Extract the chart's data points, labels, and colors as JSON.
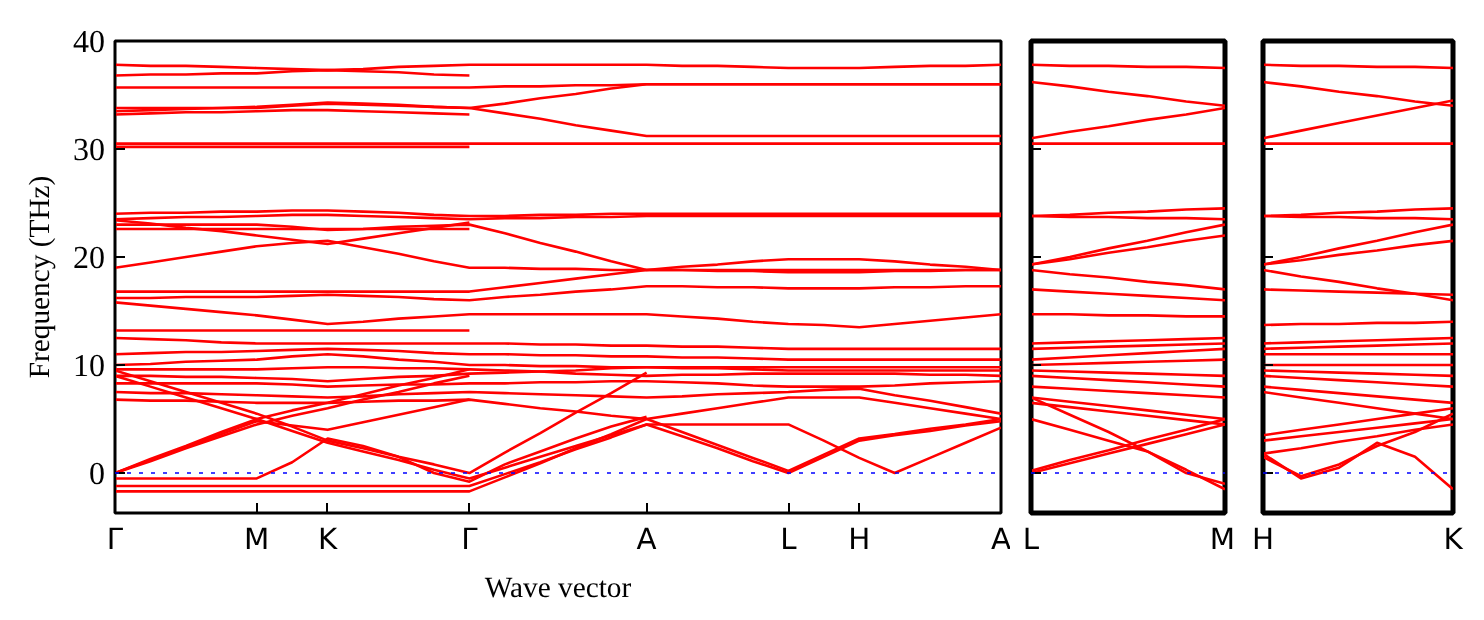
{
  "chart_data": [
    {
      "type": "line",
      "xlabel": "Wave vector",
      "ylabel": "Frequency (THz)",
      "ylim": [
        -3.7,
        40
      ],
      "yticks": [
        0,
        10,
        20,
        30,
        40
      ],
      "grid": false,
      "categories": [
        "Γ",
        null,
        null,
        null,
        "M",
        null,
        "K",
        null,
        null,
        null,
        "Γ",
        null,
        null,
        null,
        null,
        "A",
        null,
        null,
        null,
        "L",
        null,
        "H",
        null,
        null,
        null,
        "A"
      ],
      "ref_lines": [
        {
          "axis": "y",
          "value": 0,
          "color": "#0000ff",
          "line_style": "dotted"
        }
      ],
      "series": [
        {
          "color": "#ff0000",
          "values": [
            37.8,
            37.7,
            37.7,
            37.6,
            37.5,
            37.4,
            37.3,
            37.4,
            37.6,
            37.7,
            37.8,
            37.8,
            37.8,
            37.8,
            37.8,
            37.8,
            37.7,
            37.7,
            37.6,
            37.5,
            37.5,
            37.5,
            37.6,
            37.7,
            37.7,
            37.8
          ]
        },
        {
          "color": "#ff0000",
          "values": [
            36.8,
            36.9,
            36.9,
            37.0,
            37.0,
            37.2,
            37.3,
            37.2,
            37.1,
            36.9,
            36.8,
            null,
            null,
            null,
            null,
            null,
            null,
            null,
            null,
            null,
            null,
            null,
            null,
            null,
            null,
            null
          ]
        },
        {
          "color": "#ff0000",
          "values": [
            35.7,
            35.7,
            35.7,
            35.7,
            35.7,
            35.7,
            35.7,
            35.7,
            35.7,
            35.7,
            35.7,
            35.8,
            35.8,
            35.9,
            35.9,
            36.0,
            36.0,
            36.0,
            36.0,
            36.0,
            36.0,
            36.0,
            36.0,
            36.0,
            36.0,
            36.0
          ]
        },
        {
          "color": "#ff0000",
          "values": [
            33.8,
            33.8,
            33.8,
            33.8,
            33.8,
            34.0,
            34.2,
            34.1,
            34.0,
            33.9,
            33.8,
            33.3,
            32.8,
            32.2,
            31.7,
            31.2,
            31.2,
            31.2,
            31.2,
            31.2,
            31.2,
            31.2,
            31.2,
            31.2,
            31.2,
            31.2
          ]
        },
        {
          "color": "#ff0000",
          "values": [
            33.5,
            33.6,
            33.7,
            33.8,
            33.9,
            34.1,
            34.3,
            34.2,
            34.1,
            33.9,
            33.8,
            34.2,
            34.7,
            35.1,
            35.6,
            36.0,
            36.0,
            36.0,
            36.0,
            36.0,
            36.0,
            36.0,
            36.0,
            36.0,
            36.0,
            36.0
          ]
        },
        {
          "color": "#ff0000",
          "values": [
            33.2,
            33.3,
            33.4,
            33.4,
            33.5,
            33.6,
            33.6,
            33.5,
            33.4,
            33.3,
            33.2,
            null,
            null,
            null,
            null,
            null,
            null,
            null,
            null,
            null,
            null,
            null,
            null,
            null,
            null,
            null
          ]
        },
        {
          "color": "#ff0000",
          "values": [
            30.5,
            30.5,
            30.5,
            30.5,
            30.5,
            30.5,
            30.5,
            30.5,
            30.5,
            30.5,
            30.5,
            30.5,
            30.5,
            30.5,
            30.5,
            30.5,
            30.5,
            30.5,
            30.5,
            30.5,
            30.5,
            30.5,
            30.5,
            30.5,
            30.5,
            30.5
          ]
        },
        {
          "color": "#ff0000",
          "values": [
            30.2,
            30.2,
            30.2,
            30.2,
            30.2,
            30.2,
            30.2,
            30.2,
            30.2,
            30.2,
            30.2,
            null,
            null,
            null,
            null,
            null,
            null,
            null,
            null,
            null,
            null,
            null,
            null,
            null,
            null,
            null
          ]
        },
        {
          "color": "#ff0000",
          "values": [
            24.0,
            24.1,
            24.1,
            24.2,
            24.2,
            24.3,
            24.3,
            24.2,
            24.1,
            23.9,
            23.8,
            23.8,
            23.9,
            23.9,
            24.0,
            24.0,
            24.0,
            24.0,
            24.0,
            24.0,
            24.0,
            24.0,
            24.0,
            24.0,
            24.0,
            24.0
          ]
        },
        {
          "color": "#ff0000",
          "values": [
            23.5,
            23.6,
            23.7,
            23.7,
            23.8,
            23.9,
            23.9,
            23.8,
            23.7,
            23.6,
            23.5,
            23.6,
            23.6,
            23.7,
            23.7,
            23.8,
            23.8,
            23.8,
            23.8,
            23.8,
            23.8,
            23.8,
            23.8,
            23.8,
            23.8,
            23.8
          ]
        },
        {
          "color": "#ff0000",
          "values": [
            23.0,
            23.0,
            23.0,
            23.0,
            23.0,
            22.8,
            22.5,
            22.6,
            22.8,
            22.9,
            23.0,
            22.2,
            21.3,
            20.5,
            19.6,
            18.8,
            18.8,
            18.8,
            18.8,
            18.8,
            18.8,
            18.8,
            18.8,
            18.8,
            18.8,
            18.8
          ]
        },
        {
          "color": "#ff0000",
          "values": [
            22.6,
            22.6,
            22.6,
            22.6,
            22.6,
            22.6,
            22.6,
            22.6,
            22.6,
            22.6,
            22.6,
            null,
            null,
            null,
            null,
            null,
            null,
            null,
            null,
            null,
            null,
            null,
            null,
            null,
            null,
            null
          ]
        },
        {
          "color": "#ff0000",
          "values": [
            19.0,
            19.5,
            20.0,
            20.5,
            21.0,
            21.3,
            21.5,
            20.9,
            20.3,
            19.6,
            19.0,
            19.0,
            18.9,
            18.9,
            18.8,
            18.8,
            18.8,
            18.7,
            18.7,
            18.6,
            18.6,
            18.6,
            18.7,
            18.7,
            18.8,
            18.8
          ]
        },
        {
          "color": "#ff0000",
          "values": [
            23.4,
            23.1,
            22.7,
            22.4,
            22.0,
            21.6,
            21.2,
            21.7,
            22.2,
            22.7,
            23.2,
            null,
            null,
            null,
            null,
            null,
            null,
            null,
            null,
            null,
            null,
            null,
            null,
            null,
            null,
            null
          ]
        },
        {
          "color": "#ff0000",
          "values": [
            16.8,
            16.8,
            16.8,
            16.8,
            16.8,
            16.8,
            16.8,
            16.8,
            16.8,
            16.8,
            16.8,
            17.2,
            17.6,
            18.0,
            18.4,
            18.8,
            19.1,
            19.3,
            19.6,
            19.8,
            19.8,
            19.8,
            19.6,
            19.3,
            19.1,
            18.8
          ]
        },
        {
          "color": "#ff0000",
          "values": [
            16.2,
            16.2,
            16.3,
            16.3,
            16.3,
            16.4,
            16.5,
            16.4,
            16.3,
            16.1,
            16.0,
            16.3,
            16.5,
            16.8,
            17.0,
            17.3,
            17.3,
            17.2,
            17.2,
            17.1,
            17.1,
            17.1,
            17.2,
            17.2,
            17.3,
            17.3
          ]
        },
        {
          "color": "#ff0000",
          "values": [
            15.8,
            15.5,
            15.2,
            14.9,
            14.6,
            14.2,
            13.8,
            14.0,
            14.3,
            14.5,
            14.7,
            14.7,
            14.7,
            14.7,
            14.7,
            14.7,
            14.5,
            14.3,
            14.0,
            13.8,
            13.7,
            13.5,
            13.8,
            14.1,
            14.4,
            14.7
          ]
        },
        {
          "color": "#ff0000",
          "values": [
            13.2,
            13.2,
            13.2,
            13.2,
            13.2,
            13.2,
            13.2,
            13.2,
            13.2,
            13.2,
            13.2,
            null,
            null,
            null,
            null,
            null,
            null,
            null,
            null,
            null,
            null,
            null,
            null,
            null,
            null,
            null
          ]
        },
        {
          "color": "#ff0000",
          "values": [
            12.5,
            12.4,
            12.3,
            12.1,
            12.0,
            12.0,
            12.0,
            12.0,
            12.0,
            12.0,
            12.0,
            12.0,
            11.9,
            11.9,
            11.8,
            11.8,
            11.7,
            11.7,
            11.6,
            11.5,
            11.5,
            11.5,
            11.5,
            11.5,
            11.5,
            11.5
          ]
        },
        {
          "color": "#ff0000",
          "values": [
            11.0,
            11.1,
            11.2,
            11.2,
            11.3,
            11.4,
            11.5,
            11.4,
            11.3,
            11.1,
            11.0,
            11.0,
            10.9,
            10.9,
            10.8,
            10.8,
            10.7,
            10.7,
            10.6,
            10.5,
            10.5,
            10.5,
            10.5,
            10.5,
            10.5,
            10.5
          ]
        },
        {
          "color": "#ff0000",
          "values": [
            10.0,
            10.1,
            10.3,
            10.4,
            10.5,
            10.8,
            11.0,
            10.8,
            10.5,
            10.3,
            10.0,
            10.0,
            9.9,
            9.9,
            9.8,
            9.8,
            9.7,
            9.7,
            9.6,
            9.5,
            9.5,
            9.5,
            9.5,
            9.5,
            9.5,
            9.5
          ]
        },
        {
          "color": "#ff0000",
          "values": [
            9.6,
            9.6,
            9.6,
            9.6,
            9.6,
            9.7,
            9.8,
            9.8,
            9.7,
            9.7,
            9.6,
            9.5,
            9.4,
            9.2,
            9.1,
            9.0,
            9.1,
            9.1,
            9.2,
            9.2,
            9.2,
            9.2,
            9.2,
            9.1,
            9.1,
            9.0
          ]
        },
        {
          "color": "#ff0000",
          "values": [
            9.0,
            9.0,
            8.9,
            8.9,
            8.8,
            8.7,
            8.5,
            8.7,
            8.9,
            9.0,
            9.2,
            9.3,
            9.4,
            9.5,
            9.7,
            9.8,
            9.8,
            9.8,
            9.8,
            9.8,
            9.8,
            9.8,
            9.8,
            9.8,
            9.8,
            9.8
          ]
        },
        {
          "color": "#ff0000",
          "values": [
            8.3,
            8.3,
            8.3,
            8.3,
            8.3,
            8.2,
            8.0,
            8.1,
            8.2,
            8.2,
            8.3,
            8.3,
            8.4,
            8.4,
            8.5,
            8.5,
            8.4,
            8.3,
            8.1,
            8.0,
            8.0,
            8.0,
            8.1,
            8.3,
            8.4,
            8.5
          ]
        },
        {
          "color": "#ff0000",
          "values": [
            7.5,
            7.4,
            7.4,
            7.3,
            7.2,
            7.1,
            7.0,
            7.1,
            7.3,
            7.4,
            7.5,
            7.4,
            7.3,
            7.2,
            7.1,
            7.0,
            7.1,
            7.3,
            7.4,
            7.5,
            7.7,
            7.8,
            7.2,
            6.7,
            6.1,
            5.5
          ]
        },
        {
          "color": "#ff0000",
          "values": [
            6.8,
            6.7,
            6.7,
            6.6,
            6.5,
            6.5,
            6.5,
            6.6,
            6.7,
            6.7,
            6.8,
            6.4,
            6.0,
            5.7,
            5.3,
            5.0,
            5.5,
            6.0,
            6.5,
            7.0,
            7.0,
            7.0,
            6.5,
            6.0,
            5.5,
            5.0
          ]
        },
        {
          "color": "#ff0000",
          "values": [
            9.5,
            8.5,
            7.5,
            6.5,
            5.5,
            4.3,
            3.0,
            2.3,
            1.5,
            0.8,
            0.0,
            1.9,
            3.7,
            5.6,
            7.4,
            9.3,
            null,
            null,
            null,
            null,
            null,
            null,
            null,
            null,
            null,
            null
          ]
        },
        {
          "color": "#ff0000",
          "values": [
            9.0,
            8.0,
            7.0,
            6.0,
            5.0,
            3.9,
            2.8,
            2.0,
            1.2,
            0.3,
            -0.5,
            0.5,
            1.5,
            2.5,
            3.5,
            4.5,
            3.4,
            2.3,
            1.1,
            0.0,
            1.5,
            3.0,
            3.5,
            3.9,
            4.4,
            4.8
          ]
        },
        {
          "color": "#ff0000",
          "values": [
            0.0,
            1.1,
            2.3,
            3.4,
            4.5,
            5.3,
            6.0,
            6.8,
            7.5,
            8.3,
            9.0,
            null,
            null,
            null,
            null,
            null,
            null,
            null,
            null,
            null,
            null,
            null,
            null,
            null,
            null,
            null
          ]
        },
        {
          "color": "#ff0000",
          "values": [
            0.0,
            1.3,
            2.5,
            3.8,
            5.0,
            5.8,
            6.5,
            7.3,
            8.1,
            8.8,
            9.6,
            null,
            null,
            null,
            null,
            null,
            null,
            null,
            null,
            null,
            null,
            null,
            null,
            null,
            null,
            null
          ]
        },
        {
          "color": "#ff0000",
          "values": [
            0.0,
            1.2,
            2.4,
            3.6,
            4.8,
            4.4,
            4.0,
            4.7,
            5.4,
            6.1,
            6.8,
            null,
            null,
            null,
            null,
            null,
            null,
            null,
            null,
            null,
            null,
            null,
            null,
            null,
            null,
            null
          ]
        },
        {
          "color": "#ff0000",
          "values": [
            -1.7,
            -1.7,
            -1.7,
            -1.7,
            -1.7,
            -1.7,
            -1.7,
            -1.7,
            -1.7,
            -1.7,
            -1.7,
            -0.4,
            0.9,
            2.3,
            3.6,
            5.0,
            3.8,
            2.6,
            1.4,
            0.2,
            1.7,
            3.2,
            3.6,
            4.1,
            4.5,
            5.0
          ]
        },
        {
          "color": "#ff0000",
          "values": [
            -1.2,
            -1.2,
            -1.2,
            -1.2,
            -1.2,
            -1.2,
            -1.2,
            -1.2,
            -1.2,
            -1.2,
            -1.2,
            -0.1,
            1.0,
            2.2,
            3.3,
            4.5,
            4.5,
            4.5,
            4.5,
            4.5,
            3.0,
            1.4,
            0.0,
            1.4,
            2.8,
            4.2
          ]
        },
        {
          "color": "#ff0000",
          "values": [
            -0.5,
            -0.5,
            -0.5,
            -0.5,
            -0.5,
            1.0,
            3.2,
            2.5,
            1.5,
            0.0,
            -0.8,
            0.8,
            2.0,
            3.2,
            4.3,
            5.2,
            null,
            null,
            null,
            null,
            null,
            null,
            null,
            null,
            null,
            null
          ]
        }
      ]
    },
    {
      "type": "line",
      "ylim": [
        -3.7,
        40
      ],
      "yticks": [
        0,
        10,
        20,
        30,
        40
      ],
      "tick_labels": "x",
      "grid": false,
      "categories": [
        "L",
        null,
        null,
        null,
        null,
        "M"
      ],
      "ref_lines": [
        {
          "axis": "y",
          "value": 0,
          "color": "#0000ff",
          "line_style": "dotted"
        }
      ],
      "series": [
        {
          "color": "#ff0000",
          "values": [
            37.8,
            37.7,
            37.7,
            37.6,
            37.6,
            37.5
          ]
        },
        {
          "color": "#ff0000",
          "values": [
            36.2,
            35.8,
            35.3,
            34.9,
            34.4,
            34.0
          ]
        },
        {
          "color": "#ff0000",
          "values": [
            31.0,
            31.6,
            32.1,
            32.7,
            33.2,
            33.8
          ]
        },
        {
          "color": "#ff0000",
          "values": [
            30.5,
            30.5,
            30.5,
            30.5,
            30.5,
            30.5
          ]
        },
        {
          "color": "#ff0000",
          "values": [
            23.8,
            23.9,
            24.1,
            24.2,
            24.4,
            24.5
          ]
        },
        {
          "color": "#ff0000",
          "values": [
            23.8,
            23.7,
            23.7,
            23.6,
            23.6,
            23.5
          ]
        },
        {
          "color": "#ff0000",
          "values": [
            19.3,
            20.0,
            20.8,
            21.5,
            22.3,
            23.0
          ]
        },
        {
          "color": "#ff0000",
          "values": [
            19.3,
            19.8,
            20.4,
            20.9,
            21.5,
            22.0
          ]
        },
        {
          "color": "#ff0000",
          "values": [
            18.8,
            18.4,
            18.1,
            17.7,
            17.4,
            17.0
          ]
        },
        {
          "color": "#ff0000",
          "values": [
            17.0,
            16.8,
            16.6,
            16.4,
            16.2,
            16.0
          ]
        },
        {
          "color": "#ff0000",
          "values": [
            14.7,
            14.7,
            14.6,
            14.6,
            14.5,
            14.5
          ]
        },
        {
          "color": "#ff0000",
          "values": [
            12.0,
            12.1,
            12.2,
            12.3,
            12.4,
            12.5
          ]
        },
        {
          "color": "#ff0000",
          "values": [
            11.5,
            11.6,
            11.7,
            11.8,
            11.9,
            12.0
          ]
        },
        {
          "color": "#ff0000",
          "values": [
            10.5,
            10.7,
            10.9,
            11.1,
            11.3,
            11.5
          ]
        },
        {
          "color": "#ff0000",
          "values": [
            10.0,
            10.1,
            10.2,
            10.3,
            10.4,
            10.5
          ]
        },
        {
          "color": "#ff0000",
          "values": [
            9.5,
            9.4,
            9.3,
            9.2,
            9.1,
            9.0
          ]
        },
        {
          "color": "#ff0000",
          "values": [
            9.0,
            8.8,
            8.6,
            8.4,
            8.2,
            8.0
          ]
        },
        {
          "color": "#ff0000",
          "values": [
            8.0,
            7.8,
            7.6,
            7.4,
            7.2,
            7.0
          ]
        },
        {
          "color": "#ff0000",
          "values": [
            7.0,
            6.6,
            6.2,
            5.8,
            5.4,
            5.0
          ]
        },
        {
          "color": "#ff0000",
          "values": [
            6.5,
            6.1,
            5.7,
            5.3,
            4.9,
            4.5
          ]
        },
        {
          "color": "#ff0000",
          "values": [
            0.0,
            0.9,
            1.8,
            2.7,
            3.6,
            4.5
          ]
        },
        {
          "color": "#ff0000",
          "values": [
            0.2,
            1.2,
            2.1,
            3.1,
            4.0,
            5.0
          ]
        },
        {
          "color": "#ff0000",
          "values": [
            7.0,
            5.4,
            3.8,
            2.0,
            0.0,
            -1.0
          ]
        },
        {
          "color": "#ff0000",
          "values": [
            5.0,
            4.0,
            3.0,
            2.0,
            0.3,
            -1.5
          ]
        }
      ]
    },
    {
      "type": "line",
      "ylim": [
        -3.7,
        40
      ],
      "yticks": [
        0,
        10,
        20,
        30,
        40
      ],
      "tick_labels": "x",
      "grid": false,
      "categories": [
        "H",
        null,
        null,
        null,
        null,
        "K"
      ],
      "ref_lines": [
        {
          "axis": "y",
          "value": 0,
          "color": "#0000ff",
          "line_style": "dotted"
        }
      ],
      "series": [
        {
          "color": "#ff0000",
          "values": [
            37.8,
            37.7,
            37.7,
            37.6,
            37.6,
            37.5
          ]
        },
        {
          "color": "#ff0000",
          "values": [
            36.2,
            35.8,
            35.3,
            34.9,
            34.4,
            34.0
          ]
        },
        {
          "color": "#ff0000",
          "values": [
            31.0,
            31.7,
            32.4,
            33.1,
            33.8,
            34.5
          ]
        },
        {
          "color": "#ff0000",
          "values": [
            30.5,
            30.5,
            30.5,
            30.5,
            30.5,
            30.5
          ]
        },
        {
          "color": "#ff0000",
          "values": [
            23.8,
            23.9,
            24.1,
            24.2,
            24.4,
            24.5
          ]
        },
        {
          "color": "#ff0000",
          "values": [
            23.8,
            23.7,
            23.7,
            23.6,
            23.6,
            23.5
          ]
        },
        {
          "color": "#ff0000",
          "values": [
            19.3,
            20.0,
            20.8,
            21.5,
            22.3,
            23.0
          ]
        },
        {
          "color": "#ff0000",
          "values": [
            19.3,
            19.7,
            20.2,
            20.6,
            21.1,
            21.5
          ]
        },
        {
          "color": "#ff0000",
          "values": [
            18.8,
            18.2,
            17.7,
            17.1,
            16.6,
            16.0
          ]
        },
        {
          "color": "#ff0000",
          "values": [
            17.0,
            16.9,
            16.8,
            16.7,
            16.6,
            16.5
          ]
        },
        {
          "color": "#ff0000",
          "values": [
            13.7,
            13.8,
            13.8,
            13.9,
            13.9,
            14.0
          ]
        },
        {
          "color": "#ff0000",
          "values": [
            12.0,
            12.1,
            12.2,
            12.3,
            12.4,
            12.5
          ]
        },
        {
          "color": "#ff0000",
          "values": [
            11.5,
            11.6,
            11.7,
            11.8,
            11.9,
            12.0
          ]
        },
        {
          "color": "#ff0000",
          "values": [
            11.0,
            11.0,
            11.0,
            11.0,
            11.0,
            11.0
          ]
        },
        {
          "color": "#ff0000",
          "values": [
            10.0,
            10.0,
            10.0,
            10.0,
            10.0,
            10.0
          ]
        },
        {
          "color": "#ff0000",
          "values": [
            9.5,
            9.4,
            9.3,
            9.2,
            9.1,
            9.0
          ]
        },
        {
          "color": "#ff0000",
          "values": [
            9.0,
            8.8,
            8.6,
            8.4,
            8.2,
            8.0
          ]
        },
        {
          "color": "#ff0000",
          "values": [
            8.0,
            7.7,
            7.4,
            7.1,
            6.8,
            6.5
          ]
        },
        {
          "color": "#ff0000",
          "values": [
            7.5,
            7.0,
            6.5,
            6.0,
            5.5,
            5.0
          ]
        },
        {
          "color": "#ff0000",
          "values": [
            3.5,
            4.0,
            4.5,
            5.0,
            5.5,
            6.0
          ]
        },
        {
          "color": "#ff0000",
          "values": [
            3.0,
            3.4,
            3.8,
            4.2,
            4.6,
            5.0
          ]
        },
        {
          "color": "#ff0000",
          "values": [
            1.8,
            2.3,
            2.9,
            3.4,
            4.0,
            4.5
          ]
        },
        {
          "color": "#ff0000",
          "values": [
            1.8,
            -0.5,
            0.5,
            2.8,
            1.5,
            -1.5
          ]
        },
        {
          "color": "#ff0000",
          "values": [
            1.5,
            -0.3,
            0.8,
            2.5,
            3.8,
            5.5
          ]
        }
      ]
    }
  ]
}
